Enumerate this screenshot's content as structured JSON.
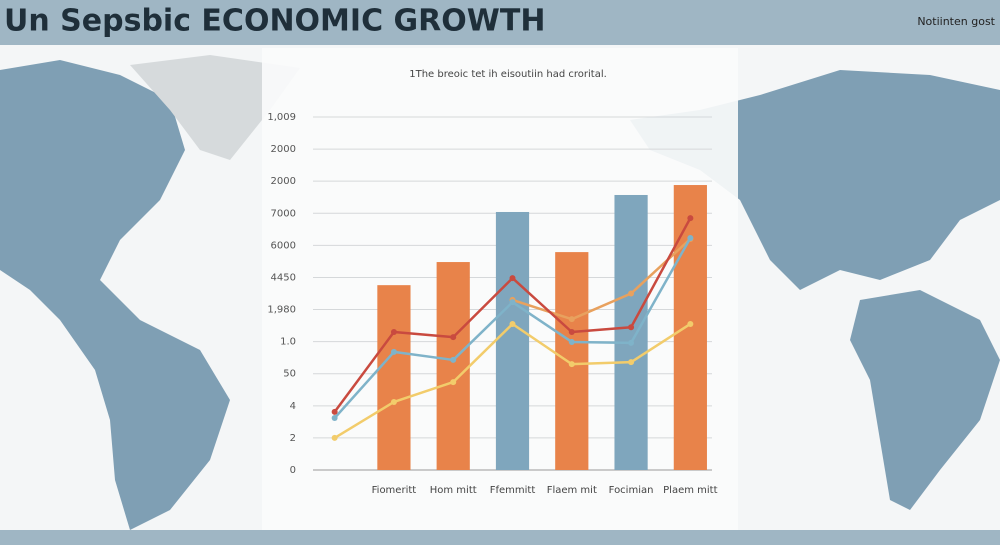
{
  "chart_data": {
    "type": "bar",
    "title": "Un Sepsbic ECONOMIC GROWTH",
    "corner_note": "Notiinten gost",
    "subtitle": "1The breoic tet ih eisoutiin had crorital.",
    "categories": [
      null,
      "Fiomeritt",
      "Hom mitt",
      "Ffemmitt",
      "Flaem mit",
      "Focimian",
      "Plaem mitt"
    ],
    "ylim": [
      0,
      11
    ],
    "yticks": [
      0,
      {
        "value": 1,
        "label": "2"
      },
      {
        "value": 2,
        "label": "4"
      },
      {
        "value": 3,
        "label": "50"
      },
      {
        "value": 4,
        "label": "1.0"
      },
      {
        "value": 5,
        "label": "1,980"
      },
      {
        "value": 6,
        "label": "4450"
      },
      {
        "value": 7,
        "label": "6000"
      },
      {
        "value": 8,
        "label": "7000"
      },
      {
        "value": 9,
        "label": "2000"
      },
      {
        "value": 10,
        "label": "2000"
      },
      {
        "value": 11,
        "label": "1,009"
      }
    ],
    "grid": true,
    "series": [
      {
        "type": "bar",
        "colors": [
          null,
          "#e8834a",
          "#e8834a",
          "#7fa6bd",
          "#e8834a",
          "#7fa6bd",
          "#e8834a"
        ],
        "values": [
          null,
          5.76,
          6.48,
          8.04,
          6.79,
          8.57,
          8.88
        ]
      },
      {
        "type": "line",
        "color": "#e8a15e",
        "values": [
          null,
          null,
          null,
          5.3,
          4.7,
          5.5,
          7.2
        ]
      },
      {
        "type": "line",
        "color": "#7fb3c9",
        "values": [
          1.62,
          3.68,
          3.43,
          5.23,
          3.99,
          3.96,
          7.23
        ]
      },
      {
        "type": "line",
        "color": "#f2cc6b",
        "values": [
          1.0,
          2.12,
          2.74,
          4.55,
          3.3,
          3.36,
          4.55
        ]
      },
      {
        "type": "line",
        "color": "#c94a3f",
        "values": [
          1.81,
          4.3,
          4.14,
          5.98,
          4.3,
          4.45,
          7.85
        ]
      }
    ]
  }
}
